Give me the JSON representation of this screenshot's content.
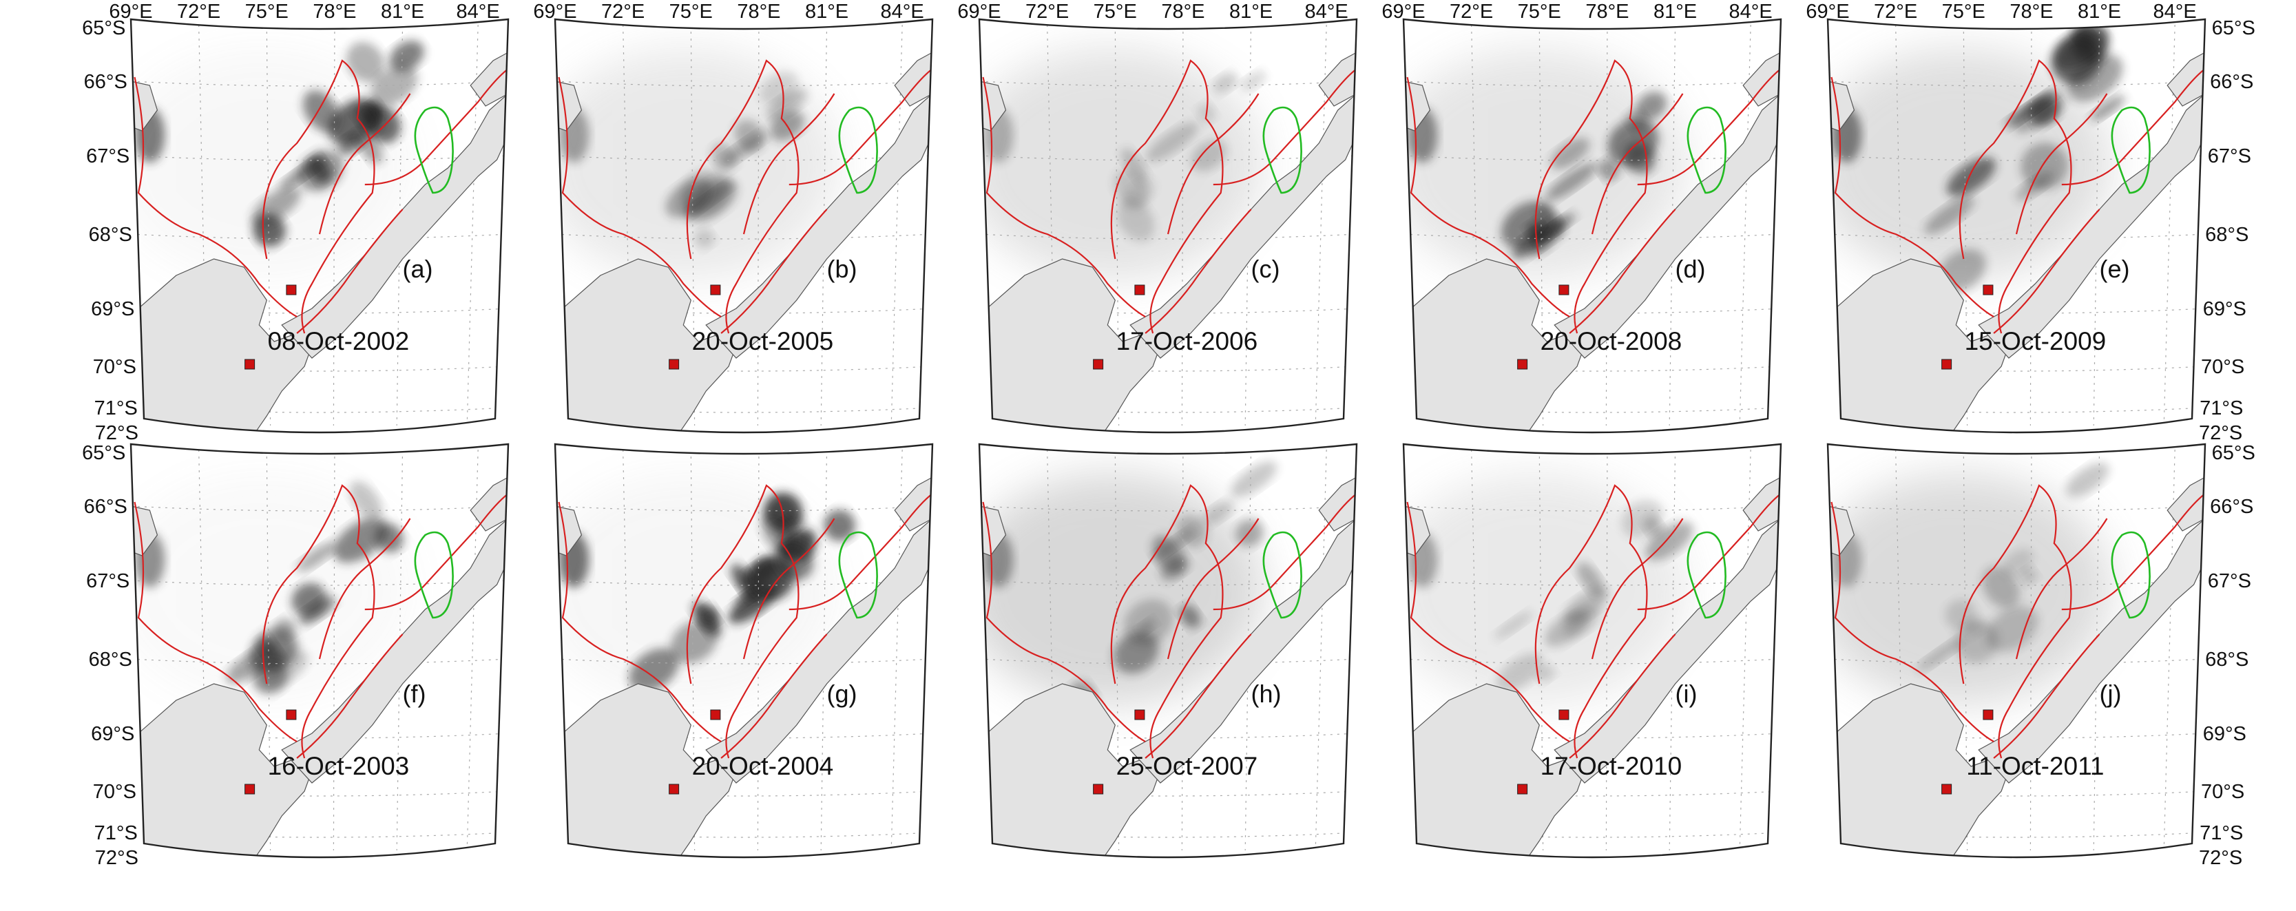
{
  "lon_ticks": [
    "69°E",
    "72°E",
    "75°E",
    "78°E",
    "81°E",
    "84°E"
  ],
  "lat_ticks": [
    "65°S",
    "66°S",
    "67°S",
    "68°S",
    "69°S",
    "70°S",
    "71°S",
    "72°S"
  ],
  "colors": {
    "land": "#e3e3e3",
    "contour": "#d82020",
    "green_outline": "#22bb22",
    "station": "#cc1111",
    "frame": "#222222",
    "grid": "#aaaaaa"
  },
  "panels": [
    {
      "label": "(a)",
      "date": "08-Oct-2002",
      "dark": 0.85,
      "haze": 0.1
    },
    {
      "label": "(b)",
      "date": "20-Oct-2005",
      "dark": 0.45,
      "haze": 0.3
    },
    {
      "label": "(c)",
      "date": "17-Oct-2006",
      "dark": 0.25,
      "haze": 0.4
    },
    {
      "label": "(d)",
      "date": "20-Oct-2008",
      "dark": 0.7,
      "haze": 0.35
    },
    {
      "label": "(e)",
      "date": "15-Oct-2009",
      "dark": 0.8,
      "haze": 0.45
    },
    {
      "label": "(f)",
      "date": "16-Oct-2003",
      "dark": 0.65,
      "haze": 0.08
    },
    {
      "label": "(g)",
      "date": "20-Oct-2004",
      "dark": 0.95,
      "haze": 0.12
    },
    {
      "label": "(h)",
      "date": "25-Oct-2007",
      "dark": 0.55,
      "haze": 0.55
    },
    {
      "label": "(i)",
      "date": "17-Oct-2010",
      "dark": 0.4,
      "haze": 0.3
    },
    {
      "label": "(j)",
      "date": "11-Oct-2011",
      "dark": 0.3,
      "haze": 0.5
    }
  ]
}
